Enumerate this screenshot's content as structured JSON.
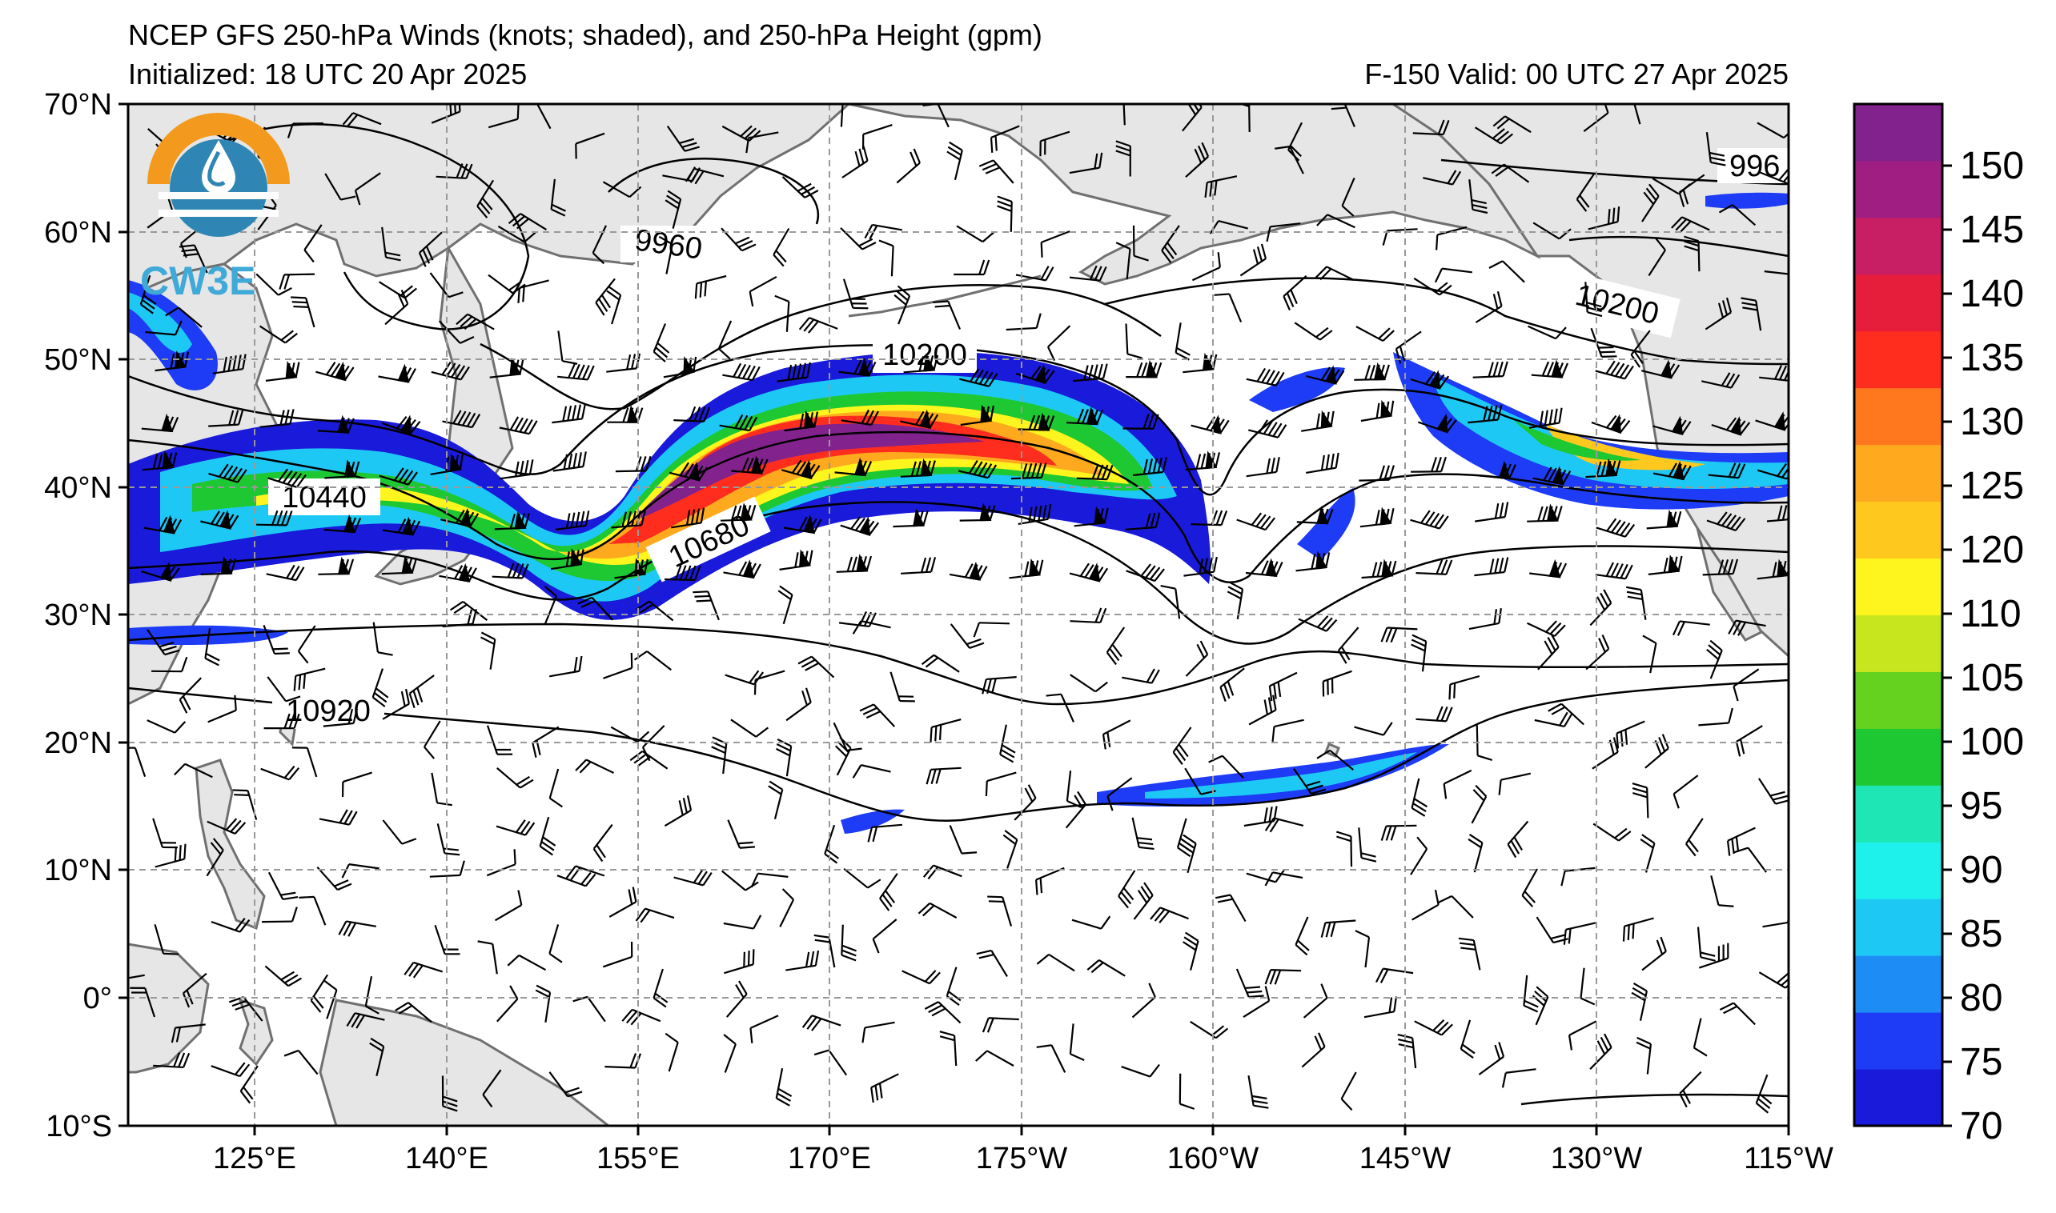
{
  "header": {
    "title": "NCEP GFS 250-hPa Winds (knots; shaded), and 250-hPa Height (gpm)",
    "initialized": "Initialized: 18 UTC 20 Apr 2025",
    "valid": "F-150  Valid: 00 UTC 27 Apr 2025"
  },
  "logo": {
    "text": "CW3E",
    "colors": {
      "orange": "#f39a1e",
      "blue": "#2f86b4",
      "light_blue": "#3fa9d8"
    }
  },
  "map": {
    "latitude_labels": [
      "70°N",
      "60°N",
      "50°N",
      "40°N",
      "30°N",
      "20°N",
      "10°N",
      "0°",
      "10°S"
    ],
    "longitude_labels": [
      "125°E",
      "140°E",
      "155°E",
      "170°E",
      "175°W",
      "160°W",
      "145°W",
      "130°W",
      "115°W"
    ],
    "contour_labels": [
      "9960",
      "10200",
      "10200",
      "10440",
      "10680",
      "10920",
      "996"
    ],
    "land_color": "#e6e6e6",
    "coast_color": "#707070",
    "grid_color": "#999999"
  },
  "colorbar": {
    "ticks": [
      "150",
      "145",
      "140",
      "135",
      "130",
      "125",
      "120",
      "110",
      "105",
      "100",
      "95",
      "90",
      "85",
      "80",
      "75",
      "70"
    ],
    "colors_bottom_to_top": [
      "#1a1adb",
      "#1e3cf5",
      "#1e8cf5",
      "#1ec8f5",
      "#1ef0ec",
      "#1ee6b4",
      "#1ec832",
      "#64d21e",
      "#c8e61e",
      "#fff51e",
      "#ffc81e",
      "#ffaa1e",
      "#ff781e",
      "#ff2d1e",
      "#e61e3c",
      "#c81e64",
      "#a01e82",
      "#82228c"
    ]
  }
}
